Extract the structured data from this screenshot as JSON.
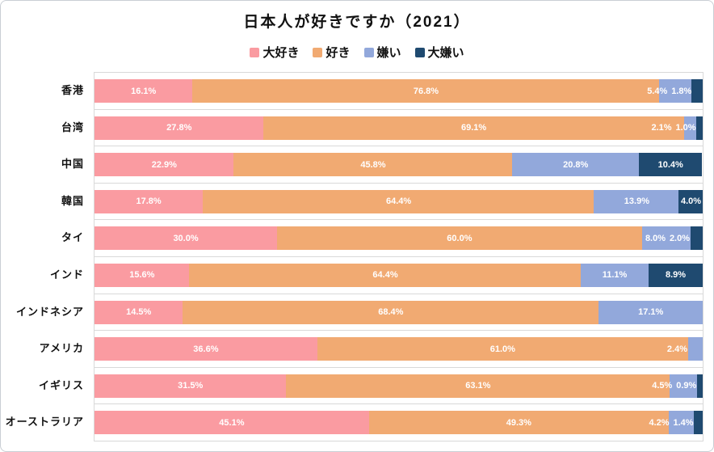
{
  "title": "日本人が好きですか（2021）",
  "legend": [
    {
      "label": "大好き",
      "color": "#fa9ba1"
    },
    {
      "label": "好き",
      "color": "#f1aa72"
    },
    {
      "label": "嫌い",
      "color": "#92a8db"
    },
    {
      "label": "大嫌い",
      "color": "#1f4a70"
    }
  ],
  "colors": {
    "love": "#fa9ba1",
    "like": "#f1aa72",
    "dislike": "#92a8db",
    "hate": "#1f4a70",
    "gridline": "#d9d9d9",
    "card_border": "#c9ced4",
    "value_label": "#ffffff"
  },
  "chart_data": {
    "type": "bar",
    "orientation": "horizontal",
    "stacked": true,
    "title": "日本人が好きですか（2021）",
    "value_suffix": "%",
    "xlim": [
      0,
      100
    ],
    "legend_position": "top",
    "grid": "category-boundaries",
    "categories": [
      "香港",
      "台湾",
      "中国",
      "韓国",
      "タイ",
      "インド",
      "インドネシア",
      "アメリカ",
      "イギリス",
      "オーストラリア"
    ],
    "series": [
      {
        "name": "大好き",
        "color": "#fa9ba1",
        "values": [
          16.1,
          27.8,
          22.9,
          17.8,
          30.0,
          15.6,
          14.5,
          36.6,
          31.5,
          45.1
        ]
      },
      {
        "name": "好き",
        "color": "#f1aa72",
        "values": [
          76.8,
          69.1,
          45.8,
          64.4,
          60.0,
          64.4,
          68.4,
          61.0,
          63.1,
          49.3
        ]
      },
      {
        "name": "嫌い",
        "color": "#92a8db",
        "values": [
          5.4,
          2.1,
          20.8,
          13.9,
          8.0,
          11.1,
          17.1,
          2.4,
          4.5,
          4.2
        ]
      },
      {
        "name": "大嫌い",
        "color": "#1f4a70",
        "values": [
          1.8,
          1.0,
          10.4,
          4.0,
          2.0,
          8.9,
          0,
          0,
          0.9,
          1.4
        ]
      }
    ]
  }
}
